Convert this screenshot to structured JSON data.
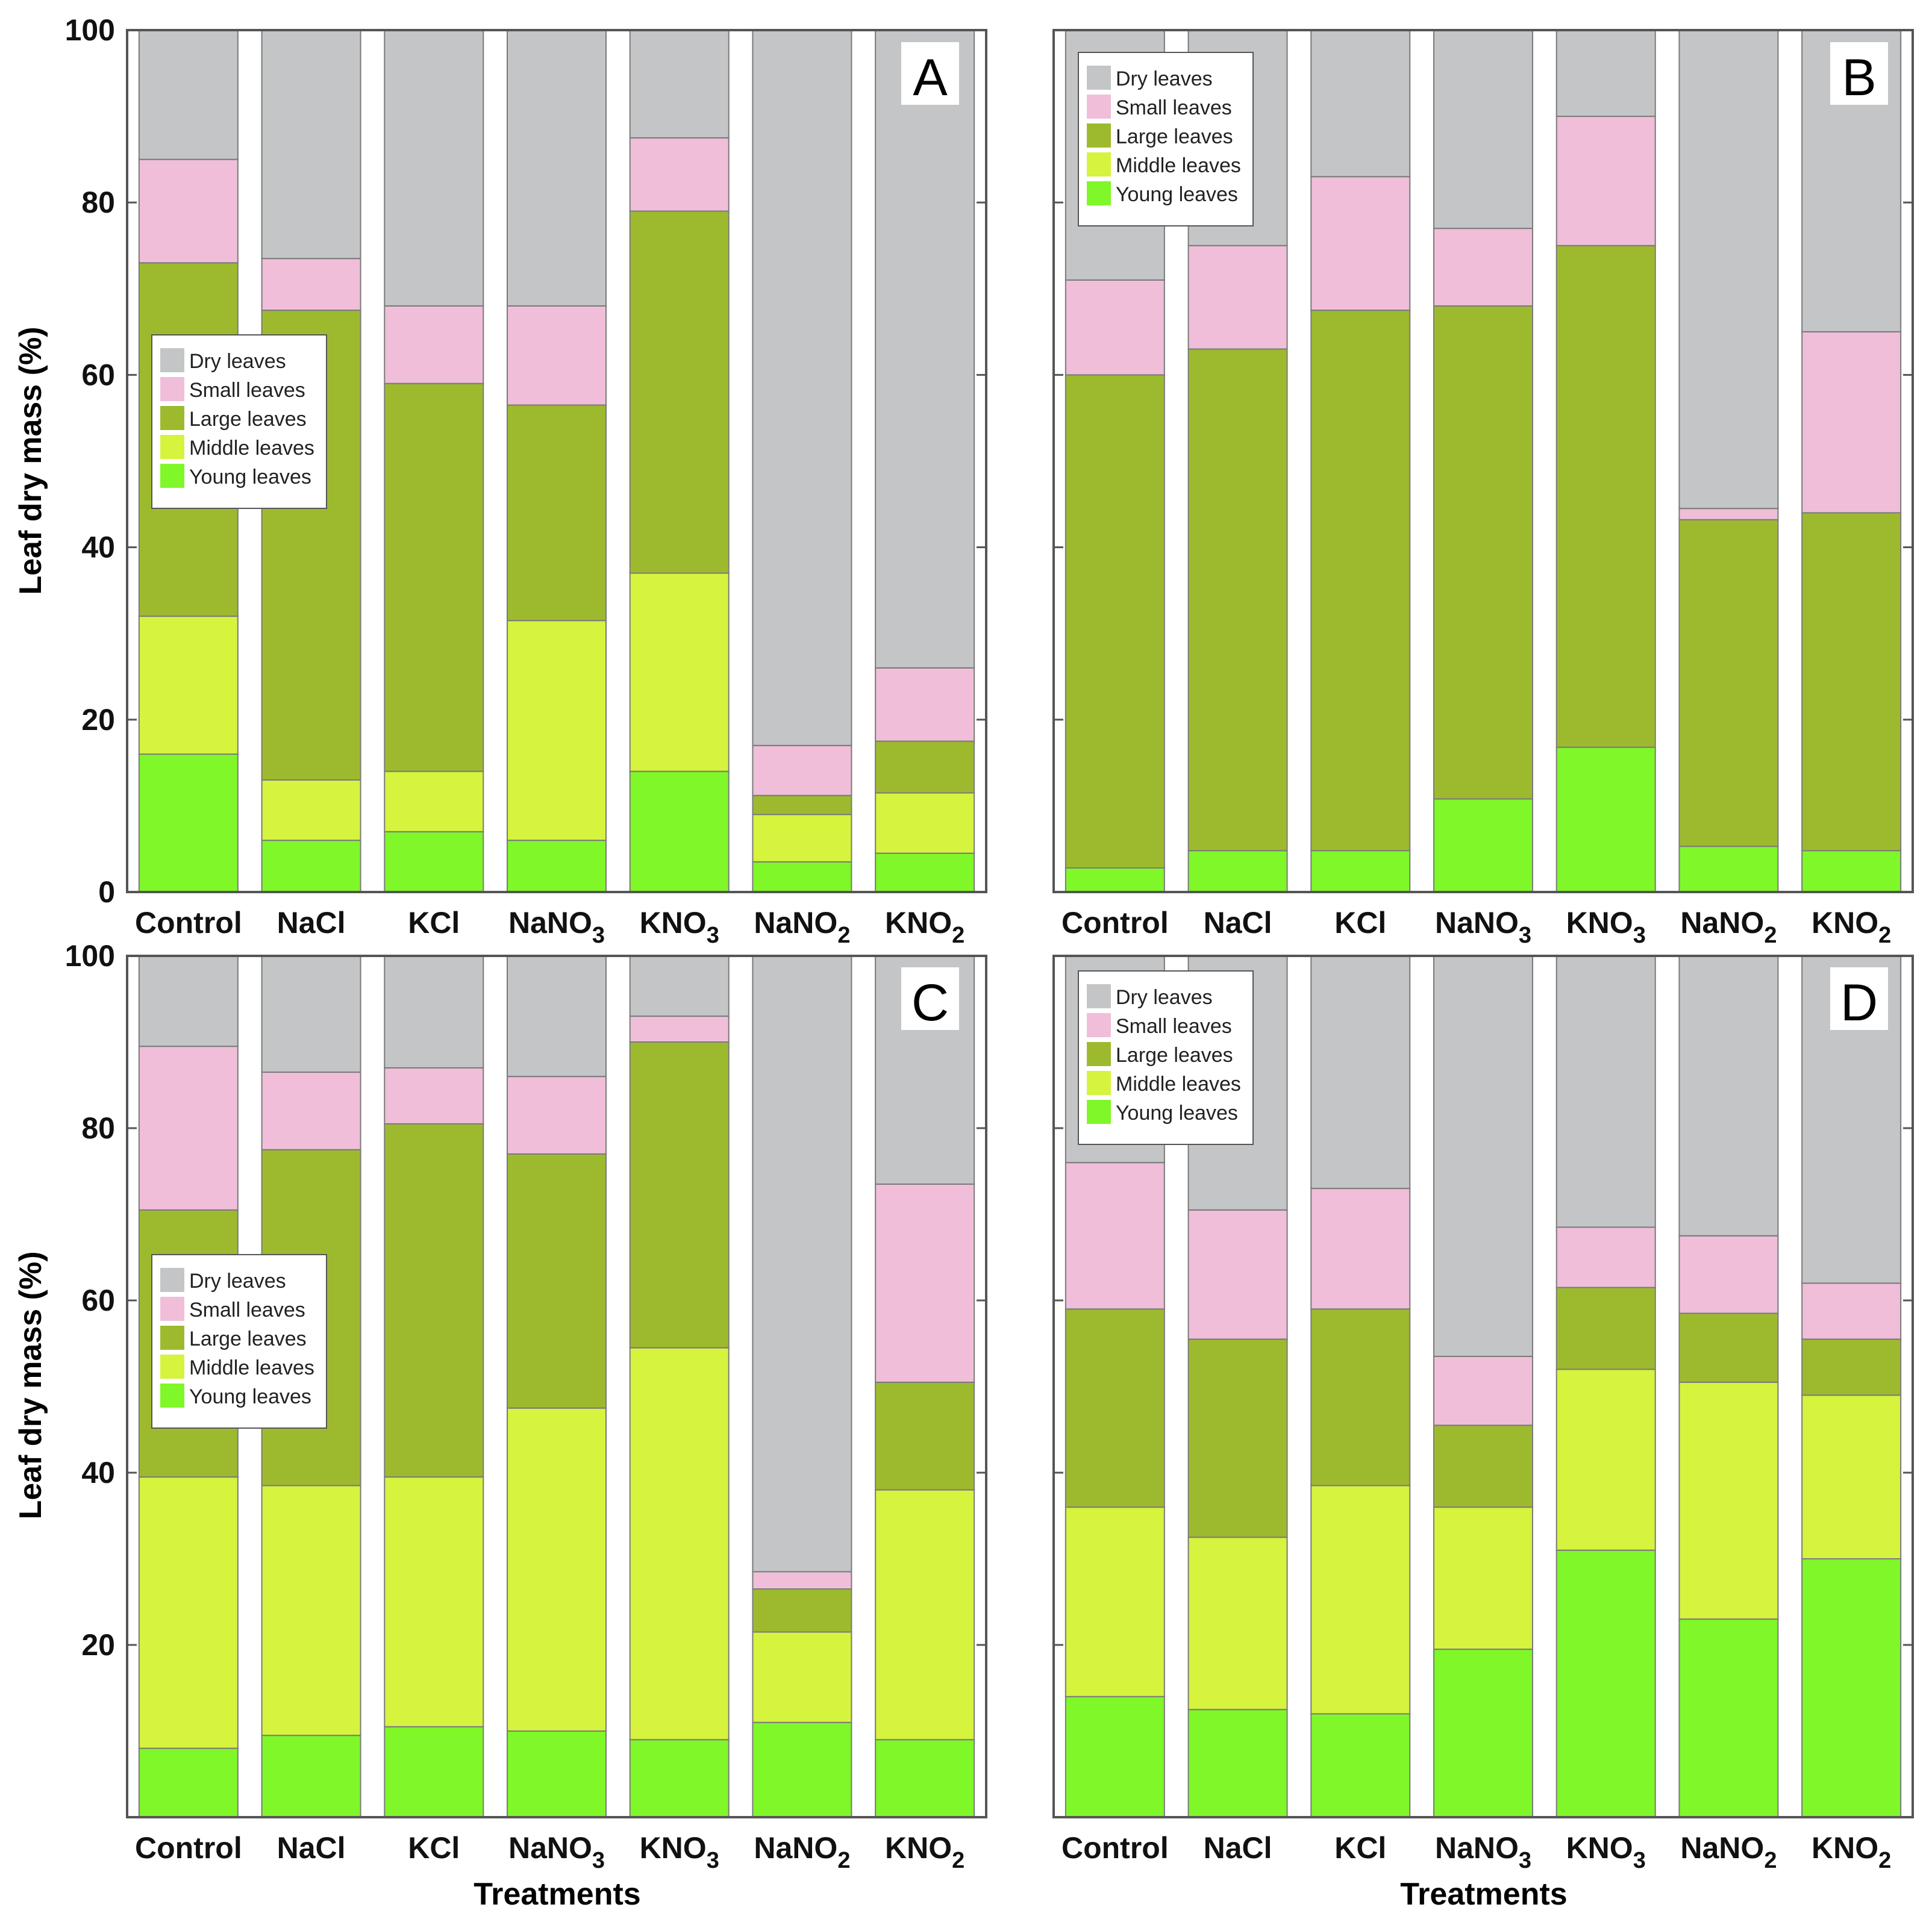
{
  "colors": {
    "dry": "#c4c5c7",
    "small": "#f0bed9",
    "large": "#9dba2f",
    "middle": "#d6f33e",
    "young": "#7ff728",
    "frame": "#555555",
    "bar_edge": "#7a7a7a"
  },
  "chart_data": [
    {
      "panel": "A",
      "type": "bar",
      "stacked": true,
      "categories": [
        "Control",
        "NaCl",
        "KCl",
        "NaNO3",
        "KNO3",
        "NaNO2",
        "KNO2"
      ],
      "series": [
        {
          "key": "young",
          "name": "Young leaves",
          "values": [
            16,
            6,
            7,
            6,
            14,
            3.5,
            4.5
          ]
        },
        {
          "key": "middle",
          "name": "Middle leaves",
          "values": [
            16,
            7,
            7,
            25.5,
            23,
            5.5,
            7
          ]
        },
        {
          "key": "large",
          "name": "Large leaves",
          "values": [
            41,
            54.5,
            45,
            25,
            42,
            2.2,
            6
          ]
        },
        {
          "key": "small",
          "name": "Small leaves",
          "values": [
            12,
            6,
            9,
            11.5,
            8.5,
            5.8,
            8.5
          ]
        },
        {
          "key": "dry",
          "name": "Dry leaves",
          "values": [
            15,
            26.5,
            32,
            32,
            12.5,
            83,
            74
          ]
        }
      ],
      "ylabel": "Leaf dry mass (%)",
      "xlabel": "",
      "ylim": [
        0,
        100
      ],
      "yticks": [
        "0",
        "20",
        "40",
        "60",
        "80",
        "100"
      ],
      "legend_position": "left-middle"
    },
    {
      "panel": "B",
      "type": "bar",
      "stacked": true,
      "categories": [
        "Control",
        "NaCl",
        "KCl",
        "NaNO3",
        "KNO3",
        "NaNO2",
        "KNO2"
      ],
      "series": [
        {
          "key": "young",
          "name": "Young leaves",
          "values": [
            2.8,
            4.8,
            4.8,
            10.8,
            16.8,
            5.3,
            4.8
          ]
        },
        {
          "key": "middle",
          "name": "Middle leaves",
          "values": [
            0,
            0,
            0,
            0,
            0,
            0,
            0
          ]
        },
        {
          "key": "large",
          "name": "Large leaves",
          "values": [
            57.2,
            58.2,
            62.7,
            57.2,
            58.2,
            37.9,
            39.2
          ]
        },
        {
          "key": "small",
          "name": "Small leaves",
          "values": [
            11,
            12,
            15.5,
            9,
            15,
            1.3,
            21
          ]
        },
        {
          "key": "dry",
          "name": "Dry leaves",
          "values": [
            29,
            25,
            17,
            23,
            10,
            55.5,
            35
          ]
        }
      ],
      "ylabel": "",
      "xlabel": "",
      "ylim": [
        0,
        100
      ],
      "yticks": [],
      "legend_position": "top-left"
    },
    {
      "panel": "C",
      "type": "bar",
      "stacked": true,
      "categories": [
        "Control",
        "NaCl",
        "KCl",
        "NaNO3",
        "KNO3",
        "NaNO2",
        "KNO2"
      ],
      "series": [
        {
          "key": "young",
          "name": "Young leaves",
          "values": [
            8,
            9.5,
            10.5,
            10,
            9,
            11,
            9
          ]
        },
        {
          "key": "middle",
          "name": "Middle leaves",
          "values": [
            31.5,
            29,
            29,
            37.5,
            45.5,
            10.5,
            29
          ]
        },
        {
          "key": "large",
          "name": "Large leaves",
          "values": [
            31,
            39,
            41,
            29.5,
            35.5,
            5,
            12.5
          ]
        },
        {
          "key": "small",
          "name": "Small leaves",
          "values": [
            19,
            9,
            6.5,
            9,
            3,
            2,
            23
          ]
        },
        {
          "key": "dry",
          "name": "Dry leaves",
          "values": [
            10.5,
            13.5,
            13,
            14,
            7,
            71.5,
            26.5
          ]
        }
      ],
      "ylabel": "Leaf dry mass (%)",
      "xlabel": "Treatments",
      "ylim": [
        0,
        100
      ],
      "yticks": [
        "20",
        "40",
        "60",
        "80",
        "100"
      ],
      "legend_position": "left-middle"
    },
    {
      "panel": "D",
      "type": "bar",
      "stacked": true,
      "categories": [
        "Control",
        "NaCl",
        "KCl",
        "NaNO3",
        "KNO3",
        "NaNO2",
        "KNO2"
      ],
      "series": [
        {
          "key": "young",
          "name": "Young leaves",
          "values": [
            14,
            12.5,
            12,
            19.5,
            31,
            23,
            30
          ]
        },
        {
          "key": "middle",
          "name": "Middle leaves",
          "values": [
            22,
            20,
            26.5,
            16.5,
            21,
            27.5,
            19
          ]
        },
        {
          "key": "large",
          "name": "Large leaves",
          "values": [
            23,
            23,
            20.5,
            9.5,
            9.5,
            8,
            6.5
          ]
        },
        {
          "key": "small",
          "name": "Small leaves",
          "values": [
            17,
            15,
            14,
            8,
            7,
            9,
            6.5
          ]
        },
        {
          "key": "dry",
          "name": "Dry leaves",
          "values": [
            24,
            29.5,
            27,
            46.5,
            31.5,
            32.5,
            38
          ]
        }
      ],
      "ylabel": "",
      "xlabel": "Treatments",
      "ylim": [
        0,
        100
      ],
      "yticks": [],
      "legend_position": "top-left"
    }
  ],
  "legend_items": [
    "Dry leaves",
    "Small leaves",
    "Large leaves",
    "Middle leaves",
    "Young leaves"
  ],
  "legend_keys": [
    "dry",
    "small",
    "large",
    "middle",
    "young"
  ],
  "x_tick_labels": [
    {
      "main": "Control",
      "sub": ""
    },
    {
      "main": "NaCl",
      "sub": ""
    },
    {
      "main": "KCl",
      "sub": ""
    },
    {
      "main": "NaNO",
      "sub": "3"
    },
    {
      "main": "KNO",
      "sub": "3"
    },
    {
      "main": "NaNO",
      "sub": "2"
    },
    {
      "main": "KNO",
      "sub": "2"
    }
  ]
}
